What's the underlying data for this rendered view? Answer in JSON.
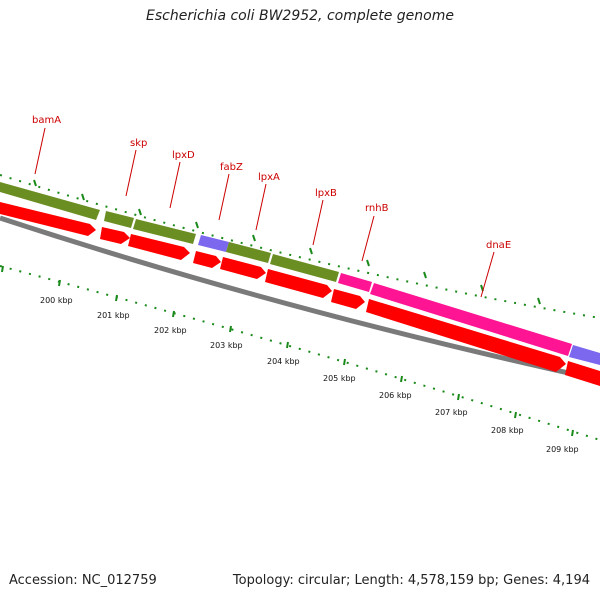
{
  "title": "Escherichia coli BW2952, complete genome",
  "footer": {
    "accession": "Accession: NC_012759",
    "summary": "Topology: circular; Length: 4,578,159 bp; Genes: 4,194"
  },
  "colors": {
    "cds": "#ff0000",
    "gene": "#6b8e23",
    "mrna": "#ff1493",
    "misc": "#7b68ee",
    "backbone": "#7a7a7a",
    "tick": "#1a8a1a",
    "label": "#cc0000"
  },
  "gene_labels": [
    "bamA",
    "skp",
    "lpxD",
    "fabZ",
    "lpxA",
    "lpxB",
    "rnhB",
    "dnaE"
  ],
  "scale_labels": [
    "200 kbp",
    "201 kbp",
    "202 kbp",
    "203 kbp",
    "204 kbp",
    "205 kbp",
    "206 kbp",
    "207 kbp",
    "208 kbp",
    "209 kbp"
  ]
}
